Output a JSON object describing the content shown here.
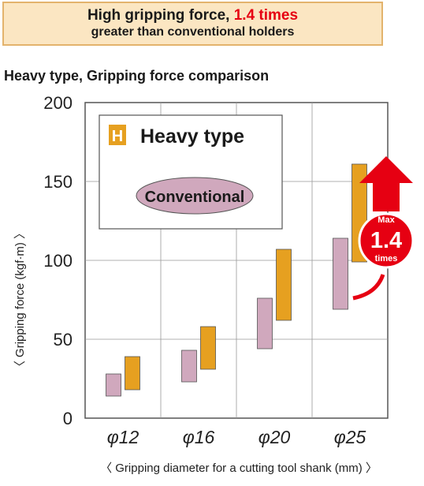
{
  "banner": {
    "line1_prefix": "High gripping force, ",
    "line1_highlight": "1.4 times",
    "line2": "greater than conventional holders"
  },
  "subtitle": "Heavy type, Gripping force comparison",
  "legend": {
    "badge": "H",
    "heavy_label": "Heavy type",
    "conventional_label": "Conventional"
  },
  "callout": {
    "top": "Max",
    "value": "1.4",
    "bottom": "times"
  },
  "colors": {
    "heavy": "#e6a020",
    "conventional": "#d0a8bd",
    "accent": "#e60012",
    "banner_bg": "#fbe6c2"
  },
  "chart_data": {
    "type": "bar",
    "subtype": "floating-range",
    "ylabel": "〈 Gripping force (kgf·m) 〉",
    "xlabel": "〈 Gripping diameter for a cutting tool shank (mm) 〉",
    "ylim": [
      0,
      200
    ],
    "yticks": [
      "0",
      "50",
      "100",
      "150",
      "200"
    ],
    "categories": [
      "φ12",
      "φ16",
      "φ20",
      "φ25"
    ],
    "grid": true,
    "legend_position": "top-left",
    "series": [
      {
        "name": "Conventional",
        "ranges": [
          [
            14,
            28
          ],
          [
            23,
            43
          ],
          [
            44,
            76
          ],
          [
            69,
            114
          ]
        ]
      },
      {
        "name": "Heavy type",
        "ranges": [
          [
            18,
            39
          ],
          [
            31,
            58
          ],
          [
            62,
            107
          ],
          [
            99,
            161
          ]
        ]
      }
    ]
  }
}
